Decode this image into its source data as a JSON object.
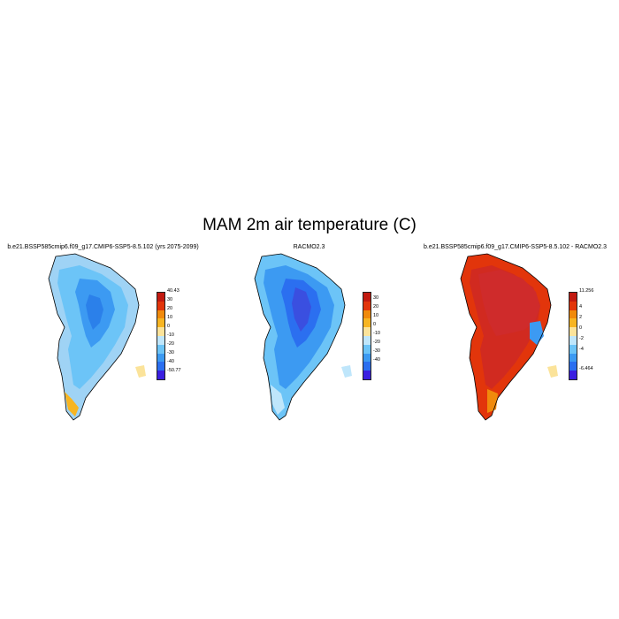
{
  "title": "MAM 2m air temperature (C)",
  "panels": [
    {
      "title": "b.e21.BSSP585cmip6.f09_g17.CMIP6-SSP5-8.5.102 (yrs 2075-2099)",
      "colorbar": {
        "colors": [
          "#3a1fe0",
          "#2b6ff0",
          "#3c9af2",
          "#6cc4f7",
          "#bfe6fb",
          "#fbe39a",
          "#f7b522",
          "#f08a0c",
          "#e2350b",
          "#c21a10"
        ],
        "labels": [
          "40.43",
          "30",
          "20",
          "10",
          "0",
          "-10",
          "-20",
          "-30",
          "-40",
          "-50.77"
        ]
      }
    },
    {
      "title": "RACMO2.3",
      "colorbar": {
        "colors": [
          "#3a1fe0",
          "#2b6ff0",
          "#3c9af2",
          "#6cc4f7",
          "#bfe6fb",
          "#fbe39a",
          "#f7b522",
          "#f08a0c",
          "#e2350b",
          "#c21a10"
        ],
        "labels": [
          "30",
          "20",
          "10",
          "0",
          "-10",
          "-20",
          "-30",
          "-40"
        ]
      }
    },
    {
      "title": "b.e21.BSSP585cmip6.f09_g17.CMIP6-SSP5-8.5.102 - RACMO2.3",
      "colorbar": {
        "colors": [
          "#3a1fe0",
          "#2b6ff0",
          "#3c9af2",
          "#6cc4f7",
          "#bfe6fb",
          "#fbe39a",
          "#f7b522",
          "#f08a0c",
          "#e2350b",
          "#c21a10"
        ],
        "labels": [
          "11.256",
          "4",
          "2",
          "0",
          "-2",
          "-4",
          "-6.464"
        ]
      }
    }
  ]
}
